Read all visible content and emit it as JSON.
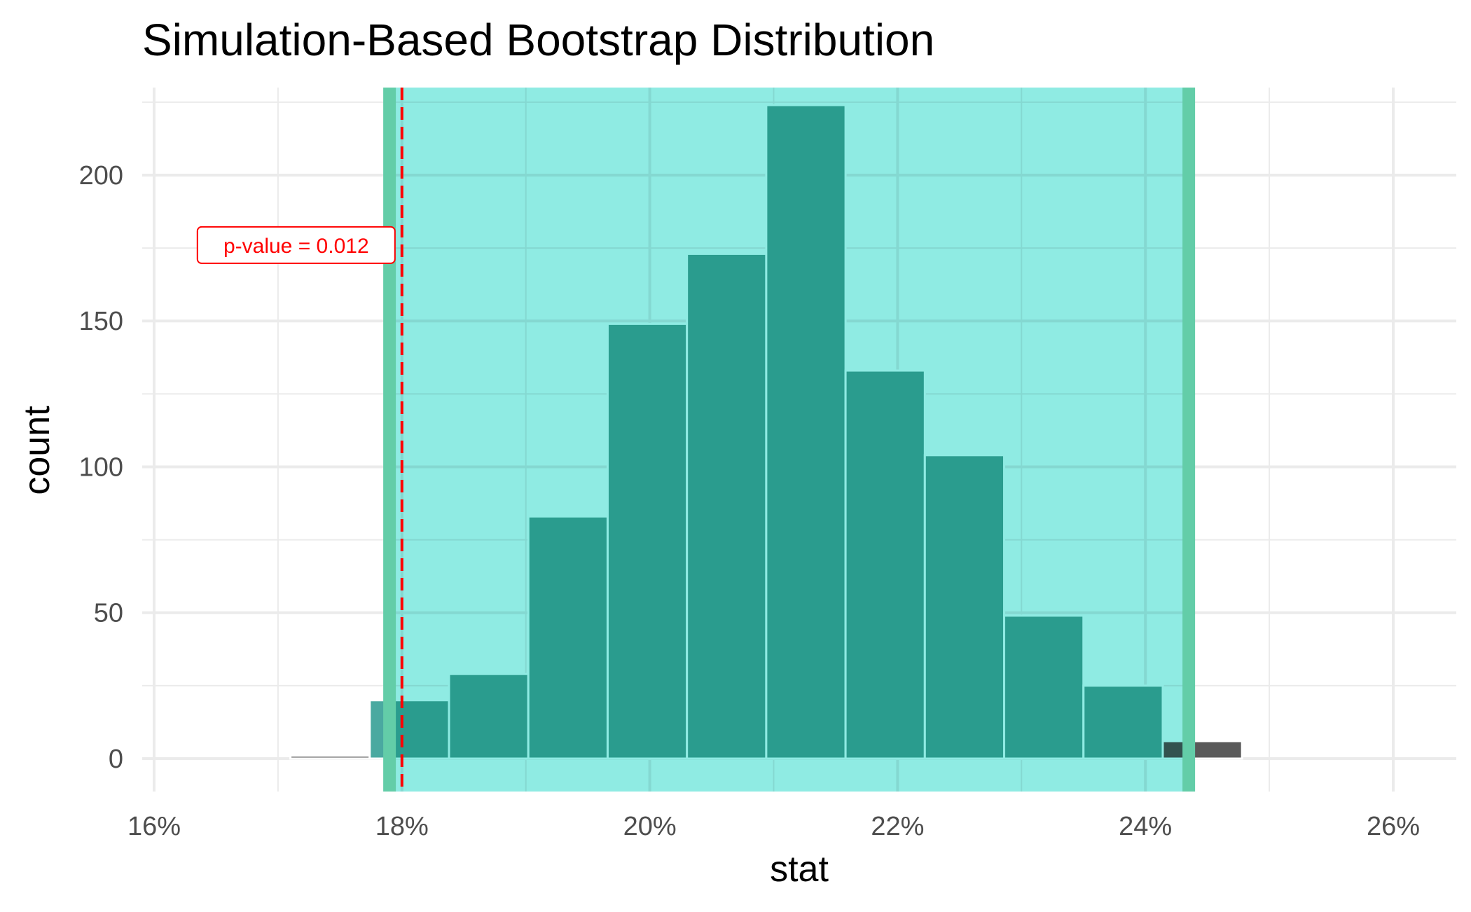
{
  "chart_data": {
    "type": "bar",
    "title": "Simulation-Based Bootstrap Distribution",
    "xlabel": "stat",
    "ylabel": "count",
    "xlim": [
      0.16,
      0.26
    ],
    "ylim": [
      0,
      230
    ],
    "x_ticks": [
      0.16,
      0.18,
      0.2,
      0.22,
      0.24,
      0.26
    ],
    "x_tick_labels": [
      "16%",
      "18%",
      "20%",
      "22%",
      "24%",
      "26%"
    ],
    "y_ticks": [
      0,
      50,
      100,
      150,
      200
    ],
    "y_tick_labels": [
      "0",
      "50",
      "100",
      "150",
      "200"
    ],
    "grid": true,
    "bins": [
      {
        "x0": 0.1582,
        "x1": 0.1646,
        "count": 0
      },
      {
        "x0": 0.1646,
        "x1": 0.171,
        "count": 0
      },
      {
        "x0": 0.171,
        "x1": 0.1774,
        "count": 1
      },
      {
        "x0": 0.1774,
        "x1": 0.1838,
        "count": 20
      },
      {
        "x0": 0.1838,
        "x1": 0.1902,
        "count": 29
      },
      {
        "x0": 0.1902,
        "x1": 0.1966,
        "count": 83
      },
      {
        "x0": 0.1966,
        "x1": 0.203,
        "count": 149
      },
      {
        "x0": 0.203,
        "x1": 0.2094,
        "count": 173
      },
      {
        "x0": 0.2094,
        "x1": 0.2158,
        "count": 224
      },
      {
        "x0": 0.2158,
        "x1": 0.2222,
        "count": 133
      },
      {
        "x0": 0.2222,
        "x1": 0.2286,
        "count": 104
      },
      {
        "x0": 0.2286,
        "x1": 0.235,
        "count": 49
      },
      {
        "x0": 0.235,
        "x1": 0.2414,
        "count": 25
      },
      {
        "x0": 0.2414,
        "x1": 0.2478,
        "count": 6
      },
      {
        "x0": 0.2478,
        "x1": 0.2542,
        "count": 0
      },
      {
        "x0": 0.2542,
        "x1": 0.2606,
        "count": 0
      }
    ],
    "confidence_interval": {
      "lower": 0.179,
      "upper": 0.2435
    },
    "observed_stat": 0.18,
    "p_value_label": "p-value = 0.012",
    "colors": {
      "bar_outside": "#595959",
      "bar_inside": "#4aa9a0",
      "bar_stroke": "#ffffff",
      "ci_fill": "#8debe2",
      "ci_edge": "#63cda8",
      "obs_line": "#ff0000",
      "grid": "#ebebeb"
    }
  }
}
